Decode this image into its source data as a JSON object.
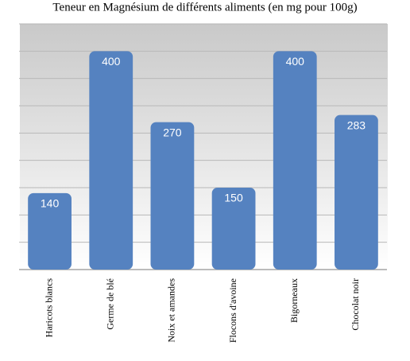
{
  "chart_data": {
    "type": "bar",
    "title": "Teneur en Magnésium de différents aliments (en mg pour 100g)",
    "categories": [
      "Haricots blancs",
      "Germe de blé",
      "Noix et amandes",
      "Flocons d'avoine",
      "Bigorneaux",
      "Chocolat noir"
    ],
    "values": [
      140,
      400,
      270,
      150,
      400,
      283
    ],
    "color": "#5582c0",
    "ylim": [
      0,
      450
    ],
    "yticks": [
      0,
      50,
      100,
      150,
      200,
      250,
      300,
      350,
      400,
      450
    ],
    "grid": true
  }
}
